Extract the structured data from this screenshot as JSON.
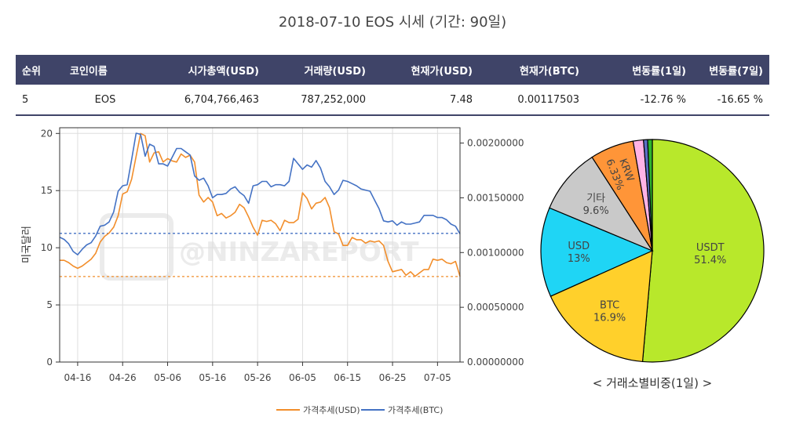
{
  "title": "2018-07-10 EOS 시세 (기간: 90일)",
  "table": {
    "headers": [
      "순위",
      "코인이름",
      "시가총액(USD)",
      "거래량(USD)",
      "현재가(USD)",
      "현재가(BTC)",
      "변동률(1일)",
      "변동률(7일)"
    ],
    "row": [
      "5",
      "EOS",
      "6,704,766,463",
      "787,252,000",
      "7.48",
      "0.00117503",
      "-12.76 %",
      "-16.65 %"
    ]
  },
  "watermark": "@NINZAREPORT",
  "colors": {
    "usd": "#f28e2b",
    "btc": "#4472c4",
    "header": "#3f4468",
    "negative": "#d62728"
  },
  "chart_data": [
    {
      "type": "line",
      "title": "",
      "ylabel": "미국달러",
      "x_ticks": [
        "04-16",
        "04-26",
        "05-06",
        "05-16",
        "05-26",
        "06-05",
        "06-15",
        "06-25",
        "07-05"
      ],
      "x_tick_day_index": [
        4,
        14,
        24,
        34,
        44,
        54,
        64,
        74,
        84
      ],
      "x_range_days": [
        0,
        89
      ],
      "y_left_ticks": [
        "0",
        "5",
        "10",
        "15",
        "20"
      ],
      "y_left_range": [
        0,
        20.5
      ],
      "y_right_ticks": [
        "0.00000000",
        "0.00050000",
        "0.00100000",
        "0.00150000",
        "0.00200000"
      ],
      "y_right_range": [
        0,
        0.00214
      ],
      "legend_position": "bottom-center",
      "series": [
        {
          "name": "가격추세(USD)",
          "axis": "left",
          "values": [
            8.9,
            8.9,
            8.7,
            8.4,
            8.2,
            8.4,
            8.7,
            9.0,
            9.5,
            10.5,
            11.0,
            11.3,
            11.8,
            12.8,
            14.7,
            14.9,
            16.0,
            18.0,
            20.0,
            19.8,
            17.5,
            18.3,
            18.4,
            17.5,
            17.8,
            17.6,
            17.5,
            18.2,
            17.9,
            18.1,
            17.5,
            14.6,
            14.0,
            14.4,
            14.0,
            12.8,
            13.0,
            12.6,
            12.8,
            13.1,
            13.8,
            13.5,
            12.7,
            11.8,
            11.1,
            12.4,
            12.3,
            12.4,
            12.1,
            11.5,
            12.4,
            12.2,
            12.2,
            12.5,
            14.8,
            14.3,
            13.4,
            13.9,
            14.0,
            14.4,
            13.5,
            11.4,
            11.2,
            10.2,
            10.2,
            10.9,
            10.7,
            10.7,
            10.4,
            10.6,
            10.5,
            10.6,
            10.2,
            8.8,
            7.9,
            8.0,
            8.1,
            7.6,
            7.9,
            7.5,
            7.8,
            8.1,
            8.1,
            9.0,
            8.9,
            9.0,
            8.7,
            8.6,
            8.8,
            7.5
          ]
        },
        {
          "name": "가격추세(BTC)",
          "axis": "right",
          "values": [
            0.00114,
            0.00112,
            0.00108,
            0.00101,
            0.00098,
            0.00103,
            0.00107,
            0.00109,
            0.00115,
            0.00124,
            0.00125,
            0.00128,
            0.00137,
            0.00156,
            0.00161,
            0.00162,
            0.00185,
            0.00209,
            0.00208,
            0.00188,
            0.00199,
            0.00197,
            0.00181,
            0.00181,
            0.00179,
            0.00187,
            0.00195,
            0.00195,
            0.00192,
            0.00189,
            0.0017,
            0.00166,
            0.00168,
            0.00161,
            0.0015,
            0.00153,
            0.00153,
            0.00154,
            0.00158,
            0.0016,
            0.00155,
            0.00152,
            0.00145,
            0.00161,
            0.00162,
            0.00165,
            0.00165,
            0.0016,
            0.00162,
            0.00162,
            0.00161,
            0.00165,
            0.00186,
            0.00181,
            0.00176,
            0.0018,
            0.00178,
            0.00184,
            0.00177,
            0.00165,
            0.0016,
            0.00153,
            0.00157,
            0.00166,
            0.00165,
            0.00163,
            0.00161,
            0.00158,
            0.00157,
            0.00156,
            0.00148,
            0.0014,
            0.00129,
            0.00128,
            0.00129,
            0.00125,
            0.00128,
            0.00126,
            0.00126,
            0.00127,
            0.00128,
            0.00134,
            0.00134,
            0.00134,
            0.00132,
            0.00132,
            0.0013,
            0.00126,
            0.00124,
            0.00117
          ]
        }
      ],
      "reference_lines": [
        {
          "axis": "left",
          "value": 7.48
        },
        {
          "axis": "right",
          "value": 0.00117503
        }
      ]
    },
    {
      "type": "pie",
      "title": "< 거래소별비중(1일) >",
      "slices": [
        {
          "label": "USDT",
          "value": 51.4,
          "pct": "51.4%",
          "color": "#b8e82b",
          "shown": true
        },
        {
          "label": "BTC",
          "value": 16.9,
          "pct": "16.9%",
          "color": "#ffd02b",
          "shown": true
        },
        {
          "label": "USD",
          "value": 13.0,
          "pct": "13%",
          "color": "#1fd5f5",
          "shown": true
        },
        {
          "label": "기타",
          "value": 9.6,
          "pct": "9.6%",
          "color": "#c9c9c9",
          "shown": true
        },
        {
          "label": "KRW",
          "value": 6.33,
          "pct": "6.33%",
          "color": "#ff9538",
          "shown": true
        },
        {
          "label": "",
          "value": 1.5,
          "pct": "",
          "color": "#ffb3e6",
          "shown": false
        },
        {
          "label": "",
          "value": 0.6,
          "pct": "",
          "color": "#5a6fc4",
          "shown": false
        },
        {
          "label": "",
          "value": 0.67,
          "pct": "",
          "color": "#2db52d",
          "shown": false
        }
      ]
    }
  ]
}
